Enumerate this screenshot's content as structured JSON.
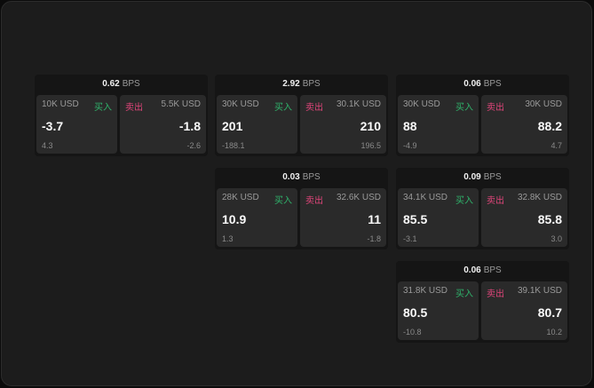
{
  "labels": {
    "buy": "买入",
    "sell": "卖出",
    "unit": "BPS"
  },
  "colors": {
    "buy": "#2fb36b",
    "sell": "#e0457a"
  },
  "cards": [
    {
      "col": 0,
      "row": 0,
      "spread": "0.62",
      "bid_size": "10K USD",
      "bid": "-3.7",
      "bid_change": "4.3",
      "ask_size": "5.5K USD",
      "ask": "-1.8",
      "ask_change": "-2.6"
    },
    {
      "col": 1,
      "row": 0,
      "spread": "2.92",
      "bid_size": "30K USD",
      "bid": "201",
      "bid_change": "-188.1",
      "ask_size": "30.1K USD",
      "ask": "210",
      "ask_change": "196.5"
    },
    {
      "col": 2,
      "row": 0,
      "spread": "0.06",
      "bid_size": "30K USD",
      "bid": "88",
      "bid_change": "-4.9",
      "ask_size": "30K USD",
      "ask": "88.2",
      "ask_change": "4.7"
    },
    {
      "col": 1,
      "row": 1,
      "spread": "0.03",
      "bid_size": "28K USD",
      "bid": "10.9",
      "bid_change": "1.3",
      "ask_size": "32.6K USD",
      "ask": "11",
      "ask_change": "-1.8"
    },
    {
      "col": 2,
      "row": 1,
      "spread": "0.09",
      "bid_size": "34.1K USD",
      "bid": "85.5",
      "bid_change": "-3.1",
      "ask_size": "32.8K USD",
      "ask": "85.8",
      "ask_change": "3.0"
    },
    {
      "col": 2,
      "row": 2,
      "spread": "0.06",
      "bid_size": "31.8K USD",
      "bid": "80.5",
      "bid_change": "-10.8",
      "ask_size": "39.1K USD",
      "ask": "80.7",
      "ask_change": "10.2"
    }
  ]
}
